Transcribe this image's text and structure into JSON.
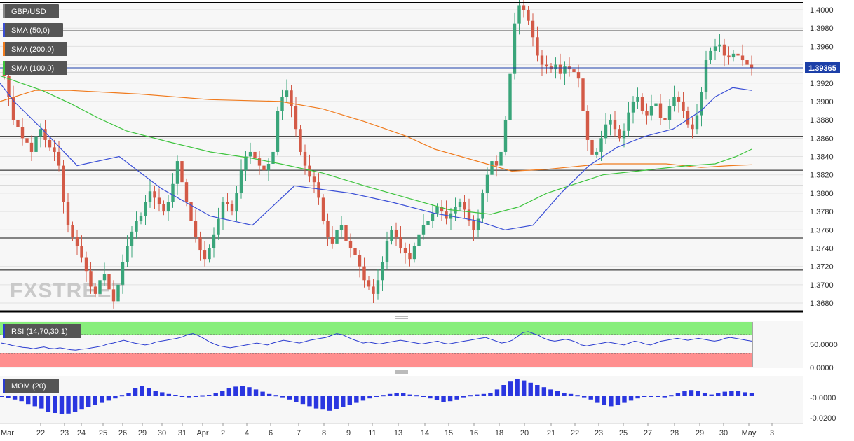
{
  "chart_data": {
    "type": "candlestick",
    "symbol": "GBP/USD",
    "watermark": "FXSTREET",
    "last_price": "1.39365",
    "indicators": [
      {
        "label": "SMA (50,0)",
        "color": "#3a4fd6"
      },
      {
        "label": "SMA (200,0)",
        "color": "#f07b1e"
      },
      {
        "label": "SMA (100,0)",
        "color": "#3ec43e"
      }
    ],
    "price_axis": {
      "ylim": [
        1.3668,
        1.4005
      ],
      "ticks": [
        "1.4000",
        "1.3980",
        "1.3960",
        "1.3940",
        "1.3920",
        "1.3900",
        "1.3880",
        "1.3860",
        "1.3840",
        "1.3820",
        "1.3800",
        "1.3780",
        "1.3760",
        "1.3740",
        "1.3720",
        "1.3700",
        "1.3680"
      ]
    },
    "x_axis_labels": [
      "Mar",
      "22",
      "23",
      "24",
      "25",
      "26",
      "29",
      "30",
      "31",
      "Apr",
      "2",
      "4",
      "6",
      "7",
      "8",
      "9",
      "11",
      "13",
      "14",
      "15",
      "16",
      "18",
      "20",
      "21",
      "22",
      "23",
      "25",
      "27",
      "28",
      "29",
      "30",
      "May",
      "3"
    ],
    "horizontal_levels": [
      1.3977,
      1.3931,
      1.3862,
      1.3825,
      1.3808,
      1.3751,
      1.3716
    ],
    "closes": [
      1.3928,
      1.3905,
      1.388,
      1.3872,
      1.386,
      1.3855,
      1.3845,
      1.3862,
      1.387,
      1.3858,
      1.385,
      1.3845,
      1.383,
      1.379,
      1.3765,
      1.3752,
      1.3742,
      1.373,
      1.3715,
      1.3698,
      1.369,
      1.3705,
      1.3712,
      1.3695,
      1.3682,
      1.37,
      1.3725,
      1.3742,
      1.3758,
      1.377,
      1.3775,
      1.379,
      1.3802,
      1.3795,
      1.3788,
      1.378,
      1.379,
      1.381,
      1.3835,
      1.3812,
      1.379,
      1.377,
      1.3752,
      1.3738,
      1.3728,
      1.374,
      1.3755,
      1.3772,
      1.379,
      1.3788,
      1.378,
      1.38,
      1.3825,
      1.384,
      1.3845,
      1.3838,
      1.383,
      1.3825,
      1.3832,
      1.3845,
      1.389,
      1.3905,
      1.3912,
      1.3895,
      1.387,
      1.3845,
      1.383,
      1.3818,
      1.3812,
      1.3795,
      1.377,
      1.3752,
      1.3745,
      1.376,
      1.3765,
      1.3748,
      1.374,
      1.3732,
      1.372,
      1.3705,
      1.3698,
      1.369,
      1.3705,
      1.3725,
      1.3748,
      1.376,
      1.3752,
      1.374,
      1.3735,
      1.3728,
      1.3742,
      1.3755,
      1.3765,
      1.377,
      1.3778,
      1.3785,
      1.378,
      1.3772,
      1.3778,
      1.3785,
      1.379,
      1.3782,
      1.377,
      1.376,
      1.3772,
      1.38,
      1.382,
      1.3835,
      1.383,
      1.3845,
      1.388,
      1.393,
      1.3985,
      1.4005,
      1.4,
      1.3988,
      1.397,
      1.395,
      1.394,
      1.3938,
      1.3935,
      1.394,
      1.393,
      1.3938,
      1.3935,
      1.3932,
      1.3925,
      1.389,
      1.3858,
      1.3842,
      1.3845,
      1.386,
      1.3875,
      1.388,
      1.387,
      1.386,
      1.3868,
      1.3888,
      1.39,
      1.3905,
      1.389,
      1.3885,
      1.3895,
      1.3898,
      1.3882,
      1.388,
      1.3895,
      1.3905,
      1.39,
      1.389,
      1.3875,
      1.387,
      1.3885,
      1.391,
      1.3945,
      1.3955,
      1.396,
      1.3962,
      1.395,
      1.3948,
      1.3952,
      1.395,
      1.3945,
      1.394,
      1.39365
    ],
    "sma50": [
      [
        0,
        1.392
      ],
      [
        20,
        1.39
      ],
      [
        60,
        1.387
      ],
      [
        110,
        1.383
      ],
      [
        170,
        1.384
      ],
      [
        230,
        1.3805
      ],
      [
        300,
        1.3775
      ],
      [
        360,
        1.3765
      ],
      [
        420,
        1.3808
      ],
      [
        500,
        1.38
      ],
      [
        560,
        1.379
      ],
      [
        620,
        1.3778
      ],
      [
        680,
        1.377
      ],
      [
        720,
        1.376
      ],
      [
        760,
        1.3765
      ],
      [
        800,
        1.38
      ],
      [
        840,
        1.383
      ],
      [
        880,
        1.385
      ],
      [
        920,
        1.3862
      ],
      [
        960,
        1.387
      ],
      [
        1000,
        1.389
      ],
      [
        1020,
        1.3905
      ],
      [
        1045,
        1.3915
      ],
      [
        1072,
        1.3912
      ]
    ],
    "sma200": [
      [
        0,
        1.39
      ],
      [
        50,
        1.3912
      ],
      [
        100,
        1.3912
      ],
      [
        200,
        1.3908
      ],
      [
        300,
        1.3902
      ],
      [
        400,
        1.39
      ],
      [
        460,
        1.3892
      ],
      [
        520,
        1.3878
      ],
      [
        580,
        1.3862
      ],
      [
        620,
        1.3848
      ],
      [
        680,
        1.3835
      ],
      [
        730,
        1.3824
      ],
      [
        780,
        1.3826
      ],
      [
        860,
        1.3832
      ],
      [
        950,
        1.3832
      ],
      [
        1000,
        1.3828
      ],
      [
        1040,
        1.383
      ],
      [
        1072,
        1.3831
      ]
    ],
    "sma100": [
      [
        0,
        1.3928
      ],
      [
        60,
        1.3912
      ],
      [
        100,
        1.3898
      ],
      [
        140,
        1.3882
      ],
      [
        180,
        1.3868
      ],
      [
        240,
        1.3856
      ],
      [
        300,
        1.3845
      ],
      [
        360,
        1.3838
      ],
      [
        400,
        1.3832
      ],
      [
        460,
        1.3822
      ],
      [
        520,
        1.3808
      ],
      [
        580,
        1.3795
      ],
      [
        640,
        1.3782
      ],
      [
        700,
        1.3777
      ],
      [
        740,
        1.3785
      ],
      [
        780,
        1.38
      ],
      [
        820,
        1.381
      ],
      [
        860,
        1.382
      ],
      [
        920,
        1.3825
      ],
      [
        980,
        1.383
      ],
      [
        1020,
        1.3832
      ],
      [
        1050,
        1.384
      ],
      [
        1072,
        1.3848
      ]
    ],
    "rsi": {
      "label": "RSI (14,70,30,1)",
      "ticks": [
        "50.0000",
        "0.0000"
      ],
      "overbought": 70,
      "oversold": 30,
      "values": [
        52,
        50,
        47,
        45,
        43,
        42,
        40,
        42,
        44,
        41,
        40,
        42,
        40,
        38,
        37,
        39,
        40,
        42,
        44,
        46,
        50,
        52,
        55,
        58,
        55,
        52,
        50,
        48,
        50,
        54,
        56,
        58,
        60,
        62,
        65,
        70,
        72,
        68,
        62,
        55,
        50,
        46,
        44,
        42,
        44,
        46,
        48,
        50,
        52,
        50,
        48,
        52,
        55,
        58,
        56,
        54,
        52,
        55,
        58,
        60,
        62,
        64,
        68,
        72,
        70,
        65,
        60,
        56,
        52,
        54,
        52,
        50,
        52,
        54,
        56,
        58,
        56,
        54,
        52,
        50,
        52,
        54,
        56,
        52,
        50,
        52,
        54,
        56,
        58,
        60,
        62,
        64,
        60,
        56,
        52,
        54,
        58,
        66,
        74,
        76,
        72,
        68,
        62,
        58,
        56,
        58,
        60,
        58,
        54,
        48,
        46,
        48,
        50,
        52,
        54,
        52,
        50,
        48,
        52,
        56,
        54,
        50,
        48,
        52,
        56,
        58,
        60,
        62,
        60,
        58,
        60,
        62,
        60,
        58,
        56,
        58,
        62,
        64,
        62,
        60,
        58,
        56
      ]
    },
    "mom": {
      "label": "MOM (20)",
      "ticks": [
        "-0.0000",
        "-0.0200"
      ],
      "values": [
        -0.0002,
        -0.0015,
        -0.003,
        -0.0045,
        -0.007,
        -0.009,
        -0.011,
        -0.014,
        -0.015,
        -0.016,
        -0.0155,
        -0.014,
        -0.012,
        -0.01,
        -0.008,
        -0.006,
        -0.004,
        -0.002,
        0.0005,
        0.003,
        0.007,
        0.009,
        0.0075,
        0.005,
        0.0035,
        0.002,
        0.001,
        -0.0002,
        -0.001,
        -0.0005,
        0.0003,
        0.001,
        0.003,
        0.005,
        0.007,
        0.0085,
        0.009,
        0.008,
        0.006,
        0.004,
        0.002,
        0.0005,
        -0.001,
        -0.003,
        -0.005,
        -0.007,
        -0.009,
        -0.011,
        -0.012,
        -0.013,
        -0.0115,
        -0.01,
        -0.008,
        -0.006,
        -0.004,
        -0.002,
        -0.0005,
        0.0005,
        0.002,
        0.003,
        0.0025,
        0.0015,
        0.0005,
        -0.0005,
        -0.002,
        -0.0035,
        -0.005,
        -0.0045,
        -0.003,
        -0.001,
        0.0005,
        0.0015,
        0.002,
        0.003,
        0.006,
        0.01,
        0.013,
        0.015,
        0.014,
        0.012,
        0.01,
        0.008,
        0.006,
        0.0045,
        0.003,
        0.002,
        0.0005,
        -0.001,
        -0.003,
        -0.006,
        -0.008,
        -0.009,
        -0.0075,
        -0.006,
        -0.004,
        -0.002,
        -0.0005,
        0.0,
        -0.0005,
        -0.001,
        0.0005,
        0.0025,
        0.0045,
        0.0055,
        0.0045,
        0.003,
        0.0015,
        0.0025,
        0.004,
        0.005,
        0.0045,
        0.0035,
        0.0025
      ]
    }
  }
}
